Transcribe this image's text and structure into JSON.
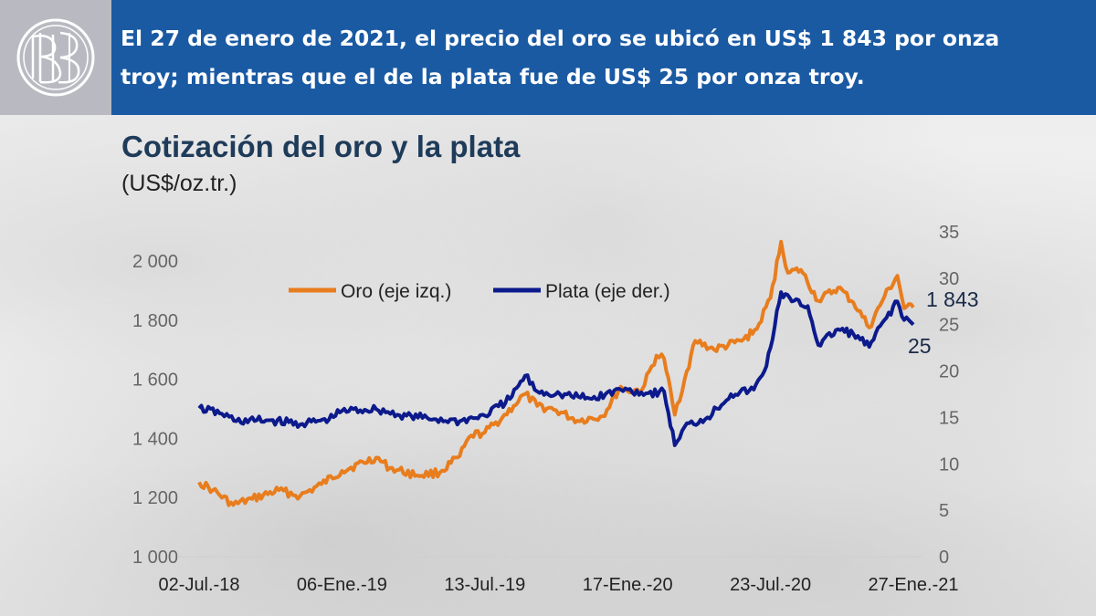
{
  "header": {
    "line1": "El 27 de enero de 2021, el precio del oro se ubicó en US$ 1 843 por onza",
    "line2": "troy; mientras que el de la plata fue de US$ 25 por onza troy."
  },
  "chart_data": {
    "type": "line",
    "title": "Cotización del oro y la plata",
    "subtitle": "(US$/oz.tr.)",
    "x_ticks": [
      "02-Jul.-18",
      "06-Ene.-19",
      "13-Jul.-19",
      "17-Ene.-20",
      "23-Jul.-20",
      "27-Ene.-21"
    ],
    "y_left": {
      "min": 1000,
      "max": 2000,
      "ticks": [
        "1 000",
        "1 200",
        "1 400",
        "1 600",
        "1 800",
        "2 000"
      ]
    },
    "y_right": {
      "min": 0,
      "max": 35,
      "ticks": [
        "0",
        "5",
        "10",
        "15",
        "20",
        "25",
        "30",
        "35"
      ]
    },
    "legend": {
      "placement": "top-left"
    },
    "series": [
      {
        "name": "Oro (eje izq.)",
        "axis": "left",
        "color": "#e87d1e",
        "end_label": "1 843",
        "points": [
          [
            "2018-07-02",
            1252
          ],
          [
            "2018-07-20",
            1225
          ],
          [
            "2018-08-16",
            1175
          ],
          [
            "2018-09-10",
            1195
          ],
          [
            "2018-10-15",
            1225
          ],
          [
            "2018-11-12",
            1205
          ],
          [
            "2018-12-10",
            1245
          ],
          [
            "2019-01-06",
            1290
          ],
          [
            "2019-02-20",
            1335
          ],
          [
            "2019-03-10",
            1300
          ],
          [
            "2019-04-15",
            1275
          ],
          [
            "2019-05-15",
            1285
          ],
          [
            "2019-06-10",
            1340
          ],
          [
            "2019-06-25",
            1410
          ],
          [
            "2019-07-13",
            1420
          ],
          [
            "2019-08-05",
            1470
          ],
          [
            "2019-08-20",
            1510
          ],
          [
            "2019-09-04",
            1550
          ],
          [
            "2019-09-20",
            1510
          ],
          [
            "2019-10-15",
            1495
          ],
          [
            "2019-11-12",
            1460
          ],
          [
            "2019-12-15",
            1475
          ],
          [
            "2020-01-08",
            1575
          ],
          [
            "2020-01-17",
            1560
          ],
          [
            "2020-02-05",
            1565
          ],
          [
            "2020-02-24",
            1680
          ],
          [
            "2020-03-05",
            1670
          ],
          [
            "2020-03-19",
            1480
          ],
          [
            "2020-04-01",
            1600
          ],
          [
            "2020-04-15",
            1730
          ],
          [
            "2020-05-10",
            1700
          ],
          [
            "2020-06-15",
            1730
          ],
          [
            "2020-07-05",
            1770
          ],
          [
            "2020-07-23",
            1875
          ],
          [
            "2020-08-06",
            2065
          ],
          [
            "2020-08-15",
            1960
          ],
          [
            "2020-09-01",
            1970
          ],
          [
            "2020-09-24",
            1865
          ],
          [
            "2020-10-20",
            1910
          ],
          [
            "2020-11-09",
            1860
          ],
          [
            "2020-11-30",
            1775
          ],
          [
            "2020-12-20",
            1880
          ],
          [
            "2021-01-06",
            1950
          ],
          [
            "2021-01-15",
            1840
          ],
          [
            "2021-01-27",
            1843
          ]
        ]
      },
      {
        "name": "Plata (eje der.)",
        "axis": "right",
        "color": "#0c1a8c",
        "end_label": "25",
        "points": [
          [
            "2018-07-02",
            16.0
          ],
          [
            "2018-08-01",
            15.4
          ],
          [
            "2018-08-20",
            14.6
          ],
          [
            "2018-10-01",
            14.7
          ],
          [
            "2018-11-15",
            14.3
          ],
          [
            "2018-12-20",
            14.8
          ],
          [
            "2019-01-06",
            15.7
          ],
          [
            "2019-02-20",
            15.9
          ],
          [
            "2019-03-20",
            15.3
          ],
          [
            "2019-05-10",
            14.8
          ],
          [
            "2019-06-10",
            14.6
          ],
          [
            "2019-07-13",
            15.2
          ],
          [
            "2019-08-15",
            17.0
          ],
          [
            "2019-09-04",
            19.5
          ],
          [
            "2019-09-20",
            17.8
          ],
          [
            "2019-10-20",
            17.5
          ],
          [
            "2019-12-01",
            17.0
          ],
          [
            "2020-01-08",
            18.0
          ],
          [
            "2020-01-17",
            18.0
          ],
          [
            "2020-02-10",
            17.6
          ],
          [
            "2020-03-05",
            17.8
          ],
          [
            "2020-03-19",
            12.0
          ],
          [
            "2020-04-01",
            14.0
          ],
          [
            "2020-05-01",
            15.0
          ],
          [
            "2020-06-01",
            17.5
          ],
          [
            "2020-07-01",
            18.0
          ],
          [
            "2020-07-15",
            20.0
          ],
          [
            "2020-07-23",
            22.5
          ],
          [
            "2020-08-06",
            28.5
          ],
          [
            "2020-08-20",
            27.5
          ],
          [
            "2020-09-10",
            27.0
          ],
          [
            "2020-09-24",
            22.8
          ],
          [
            "2020-10-20",
            24.5
          ],
          [
            "2020-11-09",
            24.0
          ],
          [
            "2020-11-30",
            22.6
          ],
          [
            "2020-12-20",
            25.5
          ],
          [
            "2021-01-06",
            27.5
          ],
          [
            "2021-01-15",
            25.5
          ],
          [
            "2021-01-27",
            25.0
          ]
        ]
      }
    ]
  }
}
